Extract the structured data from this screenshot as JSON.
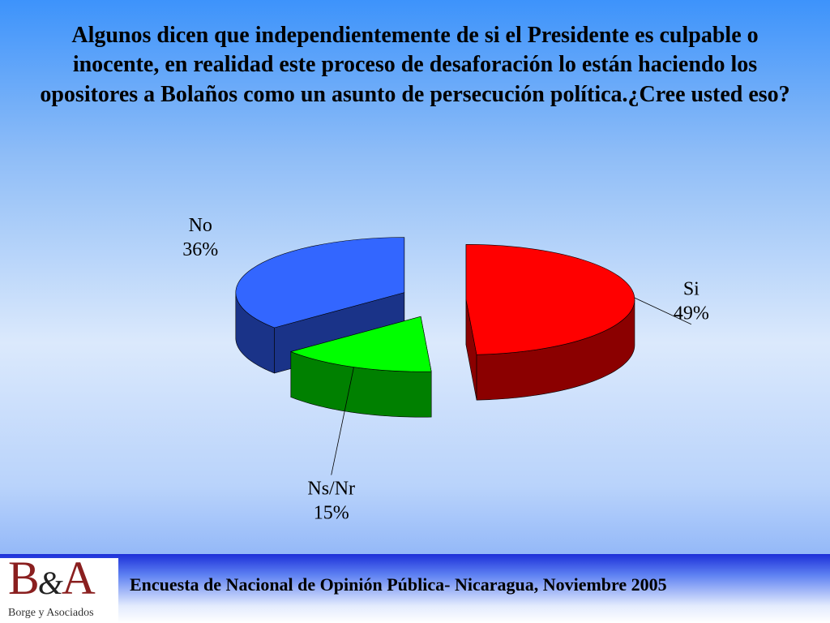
{
  "title": "Algunos dicen que independientemente de si el Presidente es culpable o inocente, en realidad este proceso de desaforación lo están haciendo los opositores a Bolaños como un asunto de persecución política.¿Cree usted eso?",
  "chart_data": {
    "type": "pie",
    "three_d": true,
    "exploded": true,
    "slices": [
      {
        "label": "Si",
        "value": 49,
        "value_label": "49%",
        "color": "#ff0000",
        "side_color": "#8b0000"
      },
      {
        "label": "Ns/Nr",
        "value": 15,
        "value_label": "15%",
        "color": "#00ff00",
        "side_color": "#008000"
      },
      {
        "label": "No",
        "value": 36,
        "value_label": "36%",
        "color": "#3366ff",
        "side_color": "#1a3388"
      }
    ]
  },
  "footer": {
    "text": "Encuesta de Nacional de Opinión Pública- Nicaragua, Noviembre 2005",
    "logo_text": "B&A",
    "logo_subtext": "Borge y Asociados"
  }
}
